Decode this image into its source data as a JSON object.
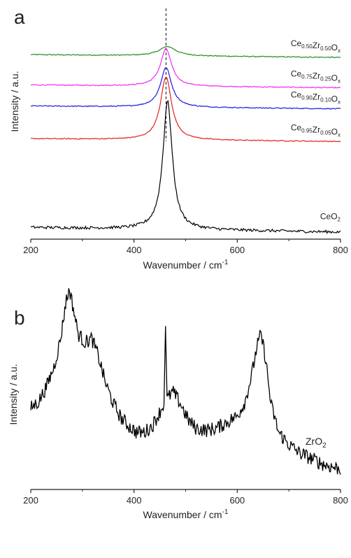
{
  "chart_data": [
    {
      "panel": "a",
      "type": "line",
      "xlabel": "Wavenumber / cm",
      "xlabel_sup": "-1",
      "ylabel": "Intensity / a.u.",
      "xlim": [
        200,
        800
      ],
      "xticks": [
        "200",
        "400",
        "600",
        "800"
      ],
      "y_ticks_shown": false,
      "offset_traces": true,
      "reference_line": {
        "x": 462,
        "style": "dashed"
      },
      "series": [
        {
          "name": "Ce0.50Zr0.50Ox",
          "label_parts": [
            [
              "Ce",
              ""
            ],
            [
              "0.50",
              "sub"
            ],
            [
              "Zr",
              ""
            ],
            [
              "0.50",
              "sub"
            ],
            [
              "O",
              ""
            ],
            [
              "x",
              "sub"
            ]
          ],
          "color": "#228b22",
          "peak_x": 465,
          "peak_height": 0.04,
          "peak_width": 20,
          "baseline_offset": 0.79
        },
        {
          "name": "Ce0.75Zr0.25Ox",
          "label_parts": [
            [
              "Ce",
              ""
            ],
            [
              "0.75",
              "sub"
            ],
            [
              "Zr",
              ""
            ],
            [
              "0.25",
              "sub"
            ],
            [
              "O",
              ""
            ],
            [
              "x",
              "sub"
            ]
          ],
          "color": "#ee2bee",
          "peak_x": 462,
          "peak_height": 0.16,
          "peak_width": 13,
          "baseline_offset": 0.66
        },
        {
          "name": "Ce0.90Zr0.10Ox",
          "label_parts": [
            [
              "Ce",
              ""
            ],
            [
              "0.90",
              "sub"
            ],
            [
              "Zr",
              ""
            ],
            [
              "0.10",
              "sub"
            ],
            [
              "O",
              ""
            ],
            [
              "x",
              "sub"
            ]
          ],
          "color": "#1a1ae0",
          "peak_x": 462,
          "peak_height": 0.17,
          "peak_width": 13,
          "baseline_offset": 0.57
        },
        {
          "name": "Ce0.95Zr0.05Ox",
          "label_parts": [
            [
              "Ce",
              ""
            ],
            [
              "0.95",
              "sub"
            ],
            [
              "Zr",
              ""
            ],
            [
              "0.05",
              "sub"
            ],
            [
              "O",
              ""
            ],
            [
              "x",
              "sub"
            ]
          ],
          "color": "#e02020",
          "peak_x": 462,
          "peak_height": 0.27,
          "peak_width": 13,
          "baseline_offset": 0.43
        },
        {
          "name": "CeO2",
          "label_parts": [
            [
              "CeO",
              ""
            ],
            [
              "2",
              "sub"
            ]
          ],
          "color": "#000000",
          "peak_x": 465,
          "peak_height": 0.55,
          "peak_width": 11,
          "baseline_offset": 0.05
        }
      ],
      "panel_label": "a"
    },
    {
      "panel": "b",
      "type": "line",
      "xlabel": "Wavenumber / cm",
      "xlabel_sup": "-1",
      "ylabel": "Intensity / a.u.",
      "xlim": [
        200,
        800
      ],
      "xticks": [
        "200",
        "400",
        "600",
        "800"
      ],
      "y_ticks_shown": false,
      "series": [
        {
          "name": "ZrO2",
          "label_parts": [
            [
              "ZrO",
              ""
            ],
            [
              "2",
              "sub"
            ]
          ],
          "color": "#000000",
          "points": [
            [
              200,
              0.4
            ],
            [
              215,
              0.43
            ],
            [
              230,
              0.5
            ],
            [
              245,
              0.6
            ],
            [
              258,
              0.74
            ],
            [
              268,
              0.92
            ],
            [
              275,
              0.98
            ],
            [
              283,
              0.88
            ],
            [
              292,
              0.76
            ],
            [
              305,
              0.72
            ],
            [
              318,
              0.74
            ],
            [
              330,
              0.66
            ],
            [
              345,
              0.52
            ],
            [
              360,
              0.42
            ],
            [
              375,
              0.35
            ],
            [
              390,
              0.31
            ],
            [
              405,
              0.28
            ],
            [
              420,
              0.28
            ],
            [
              435,
              0.31
            ],
            [
              448,
              0.37
            ],
            [
              458,
              0.42
            ],
            [
              461,
              0.8
            ],
            [
              464,
              0.44
            ],
            [
              475,
              0.48
            ],
            [
              490,
              0.42
            ],
            [
              505,
              0.34
            ],
            [
              520,
              0.3
            ],
            [
              540,
              0.29
            ],
            [
              560,
              0.3
            ],
            [
              580,
              0.33
            ],
            [
              600,
              0.36
            ],
            [
              615,
              0.43
            ],
            [
              628,
              0.56
            ],
            [
              638,
              0.7
            ],
            [
              646,
              0.76
            ],
            [
              655,
              0.64
            ],
            [
              665,
              0.42
            ],
            [
              680,
              0.28
            ],
            [
              700,
              0.22
            ],
            [
              720,
              0.18
            ],
            [
              745,
              0.15
            ],
            [
              770,
              0.12
            ],
            [
              800,
              0.1
            ]
          ]
        }
      ],
      "panel_label": "b"
    }
  ]
}
